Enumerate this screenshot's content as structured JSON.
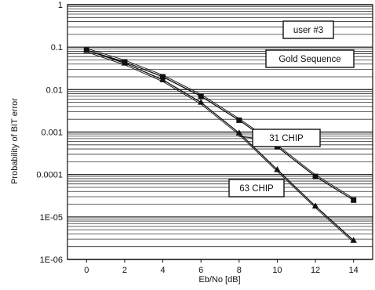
{
  "chart_data": {
    "type": "line",
    "title": "",
    "xlabel": "Eb/No [dB]",
    "ylabel": "Probability of BIT error",
    "xlim": [
      -1,
      15
    ],
    "ylim": [
      1e-06,
      1
    ],
    "y_scale": "log",
    "grid": true,
    "x_ticks": [
      0,
      2,
      4,
      6,
      8,
      10,
      12,
      14
    ],
    "x_tick_labels": [
      "0",
      "2",
      "4",
      "6",
      "8",
      "10",
      "12",
      "14"
    ],
    "y_ticks": [
      1,
      0.1,
      0.01,
      0.001,
      0.0001,
      1e-05,
      1e-06
    ],
    "y_tick_labels": [
      "1",
      "0.1",
      "0.01",
      "0.001",
      "0.0001",
      "1E-05",
      "1E-06"
    ],
    "series": [
      {
        "name": "31 CHIP",
        "marker": "square",
        "x": [
          0,
          2,
          4,
          6,
          8,
          10,
          12,
          14
        ],
        "y": [
          0.085,
          0.045,
          0.02,
          0.007,
          0.0019,
          0.00045,
          9e-05,
          2.5e-05
        ]
      },
      {
        "name": "63 CHIP",
        "marker": "triangle",
        "x": [
          0,
          2,
          4,
          6,
          8,
          10,
          12,
          14
        ],
        "y": [
          0.085,
          0.042,
          0.017,
          0.005,
          0.00095,
          0.00013,
          1.8e-05,
          2.8e-06
        ]
      }
    ],
    "annotations": [
      {
        "text": "user #3"
      },
      {
        "text": "Gold Sequence"
      }
    ],
    "colors": {
      "line": "#111111",
      "grid": "#333333",
      "box_border": "#111111",
      "background": "#ffffff"
    }
  }
}
